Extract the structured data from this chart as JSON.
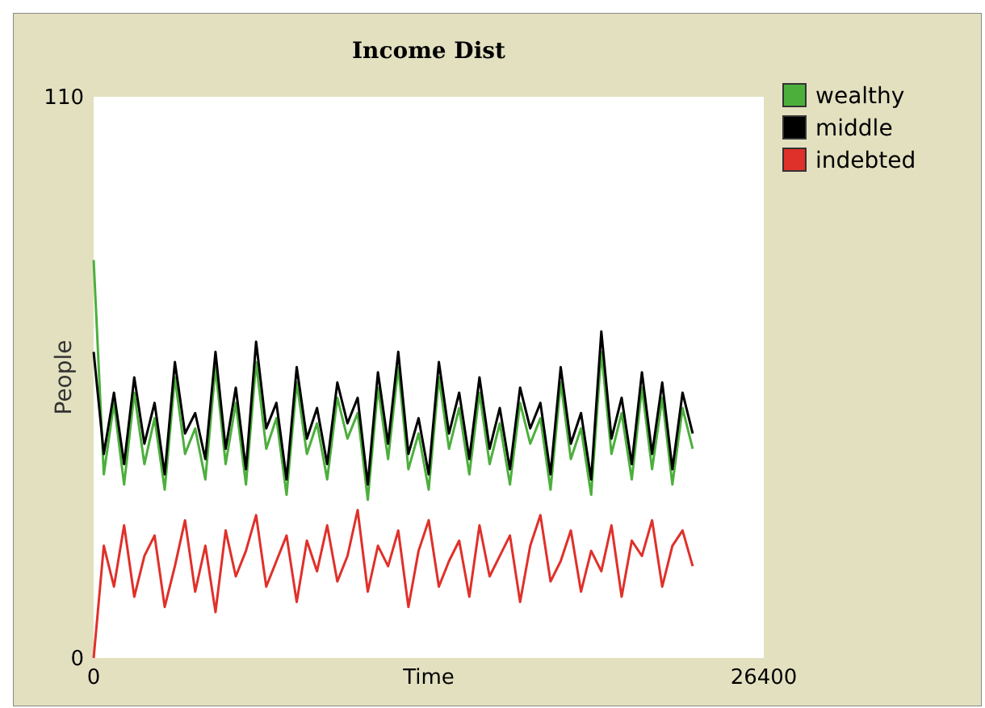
{
  "chart_data": {
    "type": "line",
    "title": "Income Dist",
    "xlabel": "Time",
    "ylabel": "People",
    "x": [
      0,
      400,
      800,
      1200,
      1600,
      2000,
      2400,
      2800,
      3200,
      3600,
      4000,
      4400,
      4800,
      5200,
      5600,
      6000,
      6400,
      6800,
      7200,
      7600,
      8000,
      8400,
      8800,
      9200,
      9600,
      10000,
      10400,
      10800,
      11200,
      11600,
      12000,
      12400,
      12800,
      13200,
      13600,
      14000,
      14400,
      14800,
      15200,
      15600,
      16000,
      16400,
      16800,
      17200,
      17600,
      18000,
      18400,
      18800,
      19200,
      19600,
      20000,
      20400,
      20800,
      21200,
      21600,
      22000,
      22400,
      22800,
      23200,
      23600
    ],
    "series": [
      {
        "name": "wealthy",
        "color": "#4caf3c",
        "values": [
          78,
          36,
          50,
          34,
          52,
          38,
          47,
          33,
          55,
          40,
          45,
          35,
          57,
          38,
          50,
          34,
          58,
          41,
          47,
          32,
          54,
          40,
          46,
          35,
          51,
          43,
          48,
          31,
          53,
          39,
          57,
          37,
          44,
          33,
          55,
          41,
          49,
          36,
          52,
          38,
          46,
          34,
          50,
          42,
          47,
          33,
          54,
          39,
          45,
          32,
          60,
          40,
          48,
          35,
          53,
          37,
          51,
          34,
          49,
          41
        ]
      },
      {
        "name": "middle",
        "color": "#000000",
        "values": [
          60,
          40,
          52,
          38,
          55,
          42,
          50,
          36,
          58,
          44,
          48,
          39,
          60,
          41,
          53,
          37,
          62,
          45,
          50,
          35,
          57,
          43,
          49,
          38,
          54,
          46,
          51,
          34,
          56,
          42,
          60,
          40,
          47,
          36,
          58,
          44,
          52,
          39,
          55,
          41,
          49,
          37,
          53,
          45,
          50,
          36,
          57,
          42,
          48,
          35,
          64,
          43,
          51,
          38,
          56,
          40,
          54,
          37,
          52,
          44
        ]
      },
      {
        "name": "indebted",
        "color": "#e0302a",
        "values": [
          0,
          22,
          14,
          26,
          12,
          20,
          24,
          10,
          18,
          27,
          13,
          22,
          9,
          25,
          16,
          21,
          28,
          14,
          19,
          24,
          11,
          23,
          17,
          26,
          15,
          20,
          29,
          13,
          22,
          18,
          25,
          10,
          21,
          27,
          14,
          19,
          23,
          12,
          26,
          16,
          20,
          24,
          11,
          22,
          28,
          15,
          19,
          25,
          13,
          21,
          17,
          26,
          12,
          23,
          20,
          27,
          14,
          22,
          25,
          18
        ]
      }
    ],
    "xlim": [
      0,
      26400
    ],
    "xticks": [
      0,
      26400
    ],
    "ylim": [
      0,
      110
    ],
    "yticks": [
      0,
      110
    ],
    "legend": "top right",
    "grid": false
  }
}
